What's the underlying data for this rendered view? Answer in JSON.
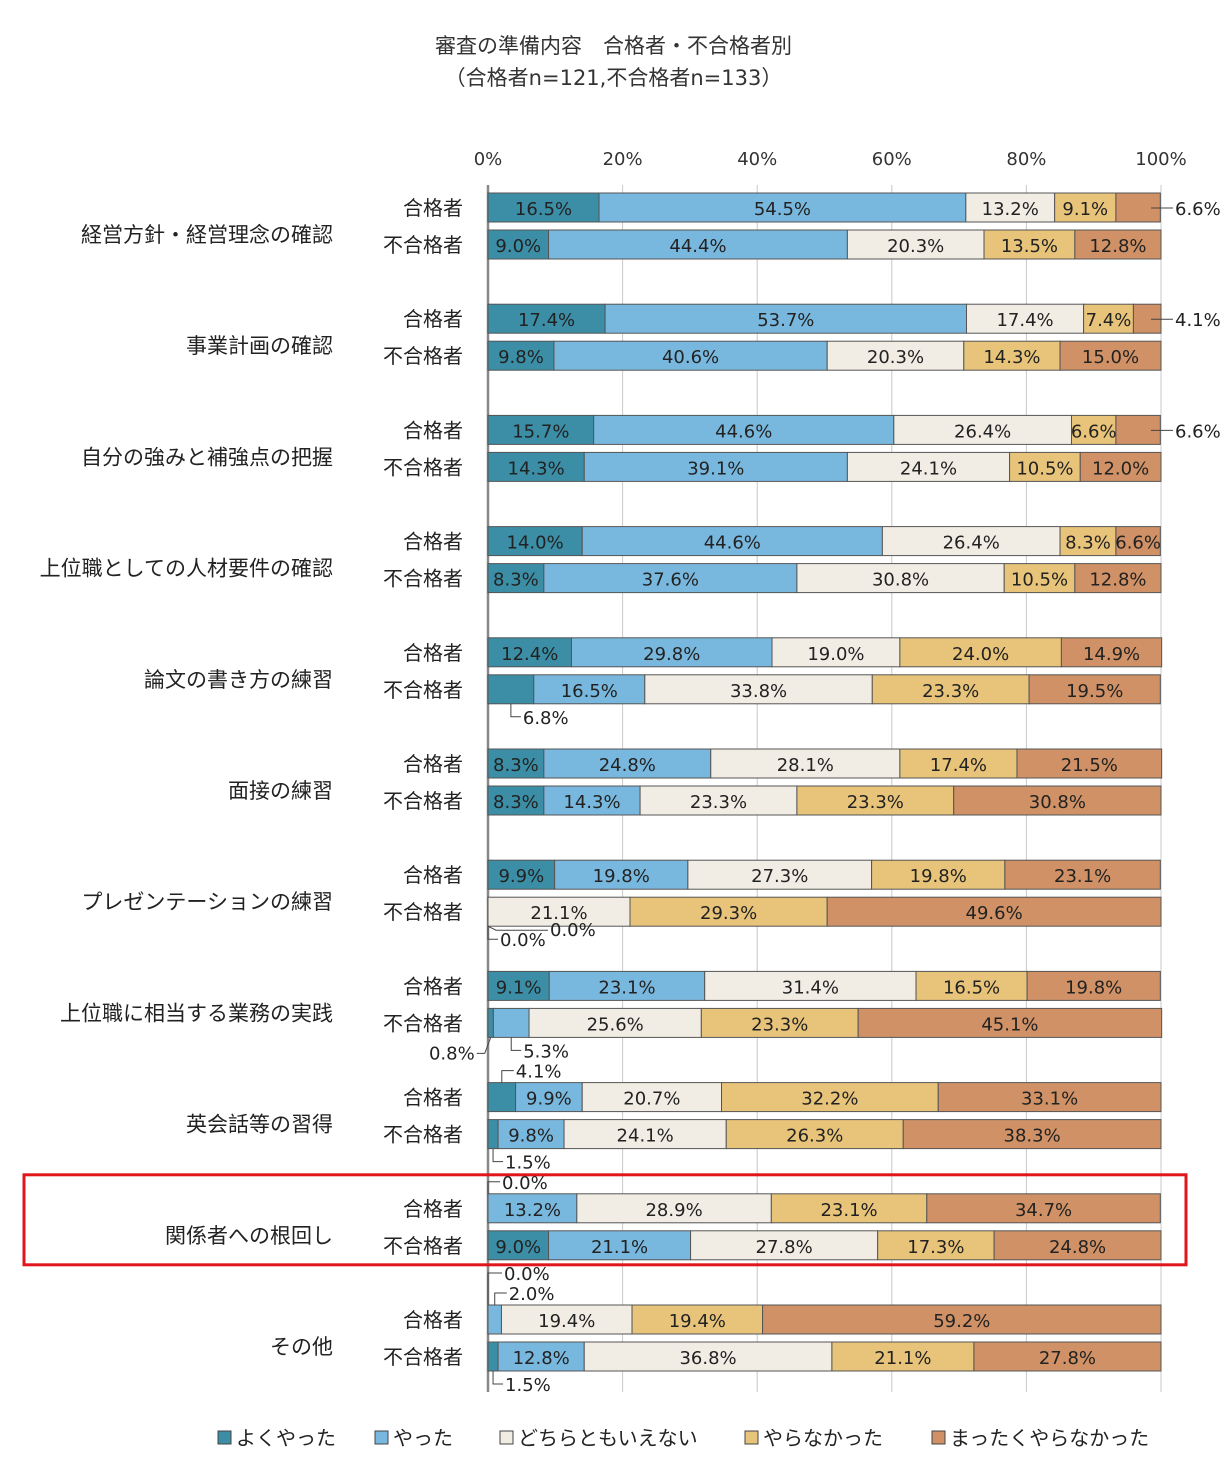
{
  "chart_data": {
    "type": "bar",
    "stacked": true,
    "orientation": "horizontal",
    "title": "審査の準備内容　合格者・不合格者別",
    "subtitle": "（合格者n=121,不合格者n=133）",
    "x_ticks": [
      "0%",
      "20%",
      "40%",
      "60%",
      "80%",
      "100%"
    ],
    "xlim": [
      0,
      100
    ],
    "legend_position": "bottom",
    "grid": true,
    "series": [
      {
        "name": "よくやった",
        "color": "#3b8ea5"
      },
      {
        "name": "やった",
        "color": "#79b8de"
      },
      {
        "name": "どちらともいえない",
        "color": "#f2ede4"
      },
      {
        "name": "やらなかった",
        "color": "#e8c47a"
      },
      {
        "name": "まったくやらなかった",
        "color": "#cf9165"
      }
    ],
    "categories": [
      {
        "label": "経営方針・経営理念の確認",
        "rows": [
          {
            "group": "合格者",
            "values": [
              16.5,
              54.5,
              13.2,
              9.1,
              6.6
            ]
          },
          {
            "group": "不合格者",
            "values": [
              9.0,
              44.4,
              20.3,
              13.5,
              12.8
            ]
          }
        ]
      },
      {
        "label": "事業計画の確認",
        "rows": [
          {
            "group": "合格者",
            "values": [
              17.4,
              53.7,
              17.4,
              7.4,
              4.1
            ]
          },
          {
            "group": "不合格者",
            "values": [
              9.8,
              40.6,
              20.3,
              14.3,
              15.0
            ]
          }
        ]
      },
      {
        "label": "自分の強みと補強点の把握",
        "rows": [
          {
            "group": "合格者",
            "values": [
              15.7,
              44.6,
              26.4,
              6.6,
              6.6
            ]
          },
          {
            "group": "不合格者",
            "values": [
              14.3,
              39.1,
              24.1,
              10.5,
              12.0
            ]
          }
        ]
      },
      {
        "label": "上位職としての人材要件の確認",
        "rows": [
          {
            "group": "合格者",
            "values": [
              14.0,
              44.6,
              26.4,
              8.3,
              6.6
            ]
          },
          {
            "group": "不合格者",
            "values": [
              8.3,
              37.6,
              30.8,
              10.5,
              12.8
            ]
          }
        ]
      },
      {
        "label": "論文の書き方の練習",
        "rows": [
          {
            "group": "合格者",
            "values": [
              12.4,
              29.8,
              19.0,
              24.0,
              14.9
            ]
          },
          {
            "group": "不合格者",
            "values": [
              6.8,
              16.5,
              33.8,
              23.3,
              19.5
            ]
          }
        ]
      },
      {
        "label": "面接の練習",
        "rows": [
          {
            "group": "合格者",
            "values": [
              8.3,
              24.8,
              28.1,
              17.4,
              21.5
            ]
          },
          {
            "group": "不合格者",
            "values": [
              8.3,
              14.3,
              23.3,
              23.3,
              30.8
            ]
          }
        ]
      },
      {
        "label": "プレゼンテーションの練習",
        "rows": [
          {
            "group": "合格者",
            "values": [
              9.9,
              19.8,
              27.3,
              19.8,
              23.1
            ]
          },
          {
            "group": "不合格者",
            "values": [
              0.0,
              0.0,
              21.1,
              29.3,
              49.6
            ]
          }
        ]
      },
      {
        "label": "上位職に相当する業務の実践",
        "rows": [
          {
            "group": "合格者",
            "values": [
              9.1,
              23.1,
              31.4,
              16.5,
              19.8
            ]
          },
          {
            "group": "不合格者",
            "values": [
              0.8,
              5.3,
              25.6,
              23.3,
              45.1
            ]
          }
        ]
      },
      {
        "label": "英会話等の習得",
        "rows": [
          {
            "group": "合格者",
            "values": [
              4.1,
              9.9,
              20.7,
              32.2,
              33.1
            ]
          },
          {
            "group": "不合格者",
            "values": [
              1.5,
              9.8,
              24.1,
              26.3,
              38.3
            ]
          }
        ]
      },
      {
        "label": "関係者への根回し",
        "highlighted": true,
        "rows": [
          {
            "group": "合格者",
            "values": [
              0.0,
              13.2,
              28.9,
              23.1,
              34.7
            ]
          },
          {
            "group": "不合格者",
            "values": [
              9.0,
              21.1,
              27.8,
              17.3,
              24.8
            ]
          }
        ]
      },
      {
        "label": "その他",
        "rows": [
          {
            "group": "合格者",
            "values": [
              0.0,
              2.0,
              19.4,
              19.4,
              59.2
            ]
          },
          {
            "group": "不合格者",
            "values": [
              1.5,
              12.8,
              36.8,
              21.1,
              27.8
            ]
          }
        ]
      }
    ],
    "highlight_color": "#e0161b",
    "callouts": [
      {
        "cat": 0,
        "row": 0,
        "seg": 4,
        "text": "6.6%",
        "side": "right"
      },
      {
        "cat": 1,
        "row": 0,
        "seg": 4,
        "text": "4.1%",
        "side": "right"
      },
      {
        "cat": 2,
        "row": 0,
        "seg": 4,
        "text": "6.6%",
        "side": "right"
      },
      {
        "cat": 4,
        "row": 1,
        "seg": 0,
        "text": "6.8%",
        "side": "below"
      },
      {
        "cat": 6,
        "row": 1,
        "seg": 0,
        "text": "0.0%",
        "side": "below"
      },
      {
        "cat": 6,
        "row": 1,
        "seg": 1,
        "text": "0.0%",
        "side": "below2"
      },
      {
        "cat": 7,
        "row": 1,
        "seg": 0,
        "text": "0.8%",
        "side": "belowleft"
      },
      {
        "cat": 7,
        "row": 1,
        "seg": 1,
        "text": "5.3%",
        "side": "below"
      },
      {
        "cat": 8,
        "row": 0,
        "seg": 0,
        "text": "4.1%",
        "side": "above"
      },
      {
        "cat": 8,
        "row": 1,
        "seg": 0,
        "text": "1.5%",
        "side": "below"
      },
      {
        "cat": 9,
        "row": 0,
        "seg": 0,
        "text": "0.0%",
        "side": "above"
      },
      {
        "cat": 10,
        "row": 0,
        "seg": 0,
        "text": "0.0%",
        "side": "above2"
      },
      {
        "cat": 10,
        "row": 0,
        "seg": 1,
        "text": "2.0%",
        "side": "above"
      },
      {
        "cat": 10,
        "row": 1,
        "seg": 0,
        "text": "1.5%",
        "side": "below"
      }
    ],
    "label_overrides": [
      {
        "cat": 8,
        "row": 0,
        "seg": 0,
        "hide": true
      },
      {
        "cat": 9,
        "row": 0,
        "seg": 0,
        "hide": true
      },
      {
        "cat": 10,
        "row": 0,
        "seg": 0,
        "hide": true
      },
      {
        "cat": 10,
        "row": 0,
        "seg": 1,
        "hide": true
      },
      {
        "cat": 10,
        "row": 1,
        "seg": 0,
        "hide": true
      },
      {
        "cat": 8,
        "row": 1,
        "seg": 0,
        "hide": true
      },
      {
        "cat": 7,
        "row": 1,
        "seg": 0,
        "hide": true
      },
      {
        "cat": 7,
        "row": 1,
        "seg": 1,
        "hide": true
      },
      {
        "cat": 6,
        "row": 1,
        "seg": 0,
        "hide": true
      },
      {
        "cat": 6,
        "row": 1,
        "seg": 1,
        "hide": true
      },
      {
        "cat": 4,
        "row": 1,
        "seg": 0,
        "hide": true
      },
      {
        "cat": 0,
        "row": 0,
        "seg": 4,
        "hide": true
      },
      {
        "cat": 1,
        "row": 0,
        "seg": 4,
        "hide": true
      },
      {
        "cat": 2,
        "row": 0,
        "seg": 4,
        "hide": true
      }
    ]
  }
}
